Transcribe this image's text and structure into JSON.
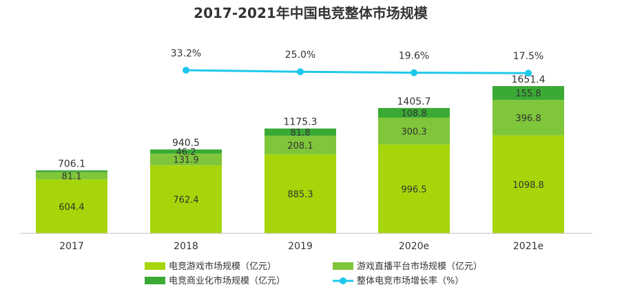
{
  "chart_data": {
    "type": "bar",
    "stacked": true,
    "title": "2017-2021年中国电竞整体市场规模",
    "categories": [
      "2017",
      "2018",
      "2019",
      "2020e",
      "2021e"
    ],
    "series": [
      {
        "name": "电竞游戏市场规模（亿元）",
        "color": "#a6d609",
        "values": [
          604.4,
          762.4,
          885.3,
          996.5,
          1098.8
        ]
      },
      {
        "name": "游戏直播平台市场规模（亿元）",
        "color": "#7fc63a",
        "values": [
          81.1,
          131.9,
          208.1,
          300.3,
          396.8
        ]
      },
      {
        "name": "电竞商业化市场规模（亿元）",
        "color": "#3aaa35",
        "values": [
          20.6,
          46.2,
          81.8,
          108.8,
          155.8
        ]
      }
    ],
    "segment_labels": [
      [
        "604.4",
        "762.4",
        "885.3",
        "996.5",
        "1098.8"
      ],
      [
        "81.1",
        "131.9",
        "208.1",
        "300.3",
        "396.8"
      ],
      [
        "",
        "46.2",
        "81.8",
        "108.8",
        "155.8"
      ]
    ],
    "totals": [
      "706.1",
      "940.5",
      "1175.3",
      "1405.7",
      "1651.4"
    ],
    "line_series": {
      "name": "整体电竞市场增长率（%）",
      "color": "#1ec8ec",
      "categories": [
        "2018",
        "2019",
        "2020e",
        "2021e"
      ],
      "values": [
        33.2,
        25.0,
        19.6,
        17.5
      ],
      "labels": [
        "33.2%",
        "25.0%",
        "19.6%",
        "17.5%"
      ]
    },
    "ylim": [
      0,
      1700
    ],
    "grid": false,
    "legend_position": "bottom"
  }
}
